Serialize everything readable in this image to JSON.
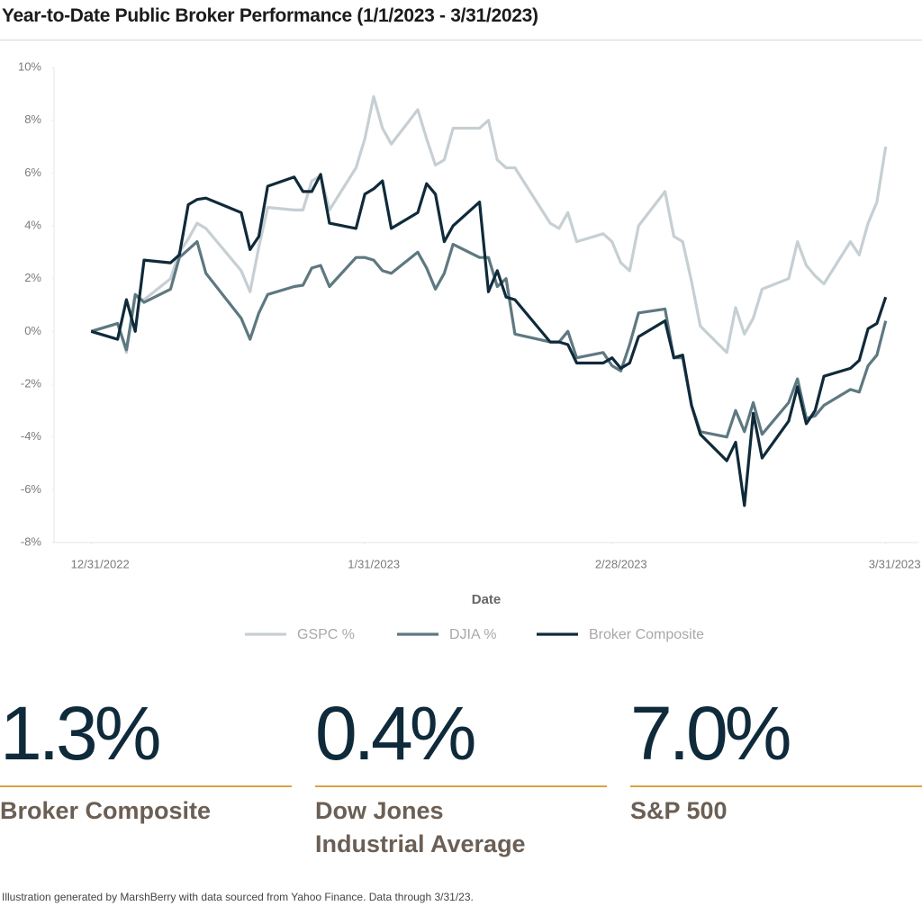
{
  "chart_data": {
    "type": "line",
    "title": "Year-to-Date Public Broker Performance (1/1/2023 - 3/31/2023)",
    "x_label": "Date",
    "x": [
      0,
      3,
      4,
      5,
      6,
      9,
      10,
      11,
      12,
      13,
      17,
      18,
      19,
      20,
      23,
      24,
      25,
      26,
      27,
      30,
      31,
      32,
      33,
      34,
      37,
      38,
      39,
      40,
      41,
      44,
      45,
      46,
      47,
      48,
      52,
      53,
      54,
      55,
      58,
      59,
      60,
      61,
      62,
      65,
      66,
      67,
      68,
      69,
      72,
      73,
      74,
      75,
      76,
      79,
      80,
      81,
      82,
      83,
      86,
      87,
      88,
      89,
      90
    ],
    "xlim": [
      -4.2,
      93.7
    ],
    "xticks": [
      {
        "value": 0,
        "label": "12/31/2022"
      },
      {
        "value": 31,
        "label": "1/31/2023"
      },
      {
        "value": 59,
        "label": "2/28/2023"
      },
      {
        "value": 90,
        "label": "3/31/2023"
      }
    ],
    "ylim": [
      -8,
      10
    ],
    "yticks": [
      {
        "value": 10,
        "label": "10%"
      },
      {
        "value": 8,
        "label": "8%"
      },
      {
        "value": 6,
        "label": "6%"
      },
      {
        "value": 4,
        "label": "4%"
      },
      {
        "value": 2,
        "label": "2%"
      },
      {
        "value": 0,
        "label": "0%"
      },
      {
        "value": -2,
        "label": "-2%"
      },
      {
        "value": -4,
        "label": "-4%"
      },
      {
        "value": -6,
        "label": "-6%"
      },
      {
        "value": -8,
        "label": "-8%"
      }
    ],
    "legend": "bottom",
    "series": [
      {
        "name": "GSPC %",
        "color": "#c6cfd3",
        "values": [
          0,
          0.3,
          -0.8,
          1.3,
          1.2,
          2.0,
          3.0,
          3.5,
          4.1,
          3.9,
          2.3,
          1.5,
          3.2,
          4.7,
          4.6,
          4.6,
          5.7,
          5.9,
          4.6,
          6.2,
          7.3,
          8.9,
          7.7,
          7.1,
          8.4,
          7.3,
          6.3,
          6.5,
          7.7,
          7.7,
          8.0,
          6.5,
          6.2,
          6.2,
          4.1,
          3.9,
          4.5,
          3.4,
          3.7,
          3.4,
          2.6,
          2.3,
          4.0,
          5.3,
          3.6,
          3.4,
          1.9,
          0.2,
          -0.8,
          0.9,
          -0.1,
          0.5,
          1.6,
          2.0,
          3.4,
          2.5,
          2.1,
          1.8,
          3.4,
          2.9,
          4.1,
          4.9,
          7.0
        ]
      },
      {
        "name": "DJIA %",
        "color": "#5e7880",
        "values": [
          0,
          0.3,
          -0.7,
          1.4,
          1.1,
          1.6,
          2.8,
          3.1,
          3.4,
          2.2,
          0.5,
          -0.3,
          0.7,
          1.4,
          1.7,
          1.75,
          2.4,
          2.5,
          1.7,
          2.8,
          2.8,
          2.7,
          2.3,
          2.2,
          3.0,
          2.4,
          1.6,
          2.2,
          3.3,
          2.8,
          2.8,
          1.7,
          2.0,
          -0.1,
          -0.4,
          -0.4,
          0,
          -1.0,
          -0.8,
          -1.3,
          -1.5,
          -0.5,
          0.7,
          0.85,
          -1.0,
          -1.0,
          -2.8,
          -3.8,
          -4.0,
          -3.0,
          -3.8,
          -2.7,
          -3.9,
          -2.7,
          -1.8,
          -3.3,
          -3.2,
          -2.8,
          -2.2,
          -2.3,
          -1.3,
          -0.9,
          0.4
        ]
      },
      {
        "name": "Broker Composite",
        "color": "#0f2a3a",
        "values": [
          0,
          -0.3,
          1.2,
          0,
          2.7,
          2.6,
          2.9,
          4.8,
          5.0,
          5.05,
          4.5,
          3.1,
          3.6,
          5.5,
          5.85,
          5.3,
          5.3,
          5.95,
          4.1,
          3.9,
          5.2,
          5.4,
          5.7,
          3.9,
          4.5,
          5.6,
          5.2,
          3.4,
          4.0,
          4.9,
          1.5,
          2.3,
          1.3,
          1.2,
          -0.4,
          -0.4,
          -0.5,
          -1.2,
          -1.2,
          -1.0,
          -1.4,
          -1.2,
          -0.2,
          0.4,
          -1.0,
          -0.9,
          -2.8,
          -3.9,
          -4.9,
          -4.2,
          -6.6,
          -3.1,
          -4.8,
          -3.4,
          -2.1,
          -3.5,
          -3.0,
          -1.7,
          -1.4,
          -1.1,
          0.1,
          0.3,
          1.3
        ]
      }
    ]
  },
  "stats": [
    {
      "value": "1.3%",
      "label": "Broker Composite"
    },
    {
      "value": "0.4%",
      "label": "Dow Jones\nIndustrial Average"
    },
    {
      "value": "7.0%",
      "label": "S&P 500"
    }
  ],
  "footnote": "Illustration generated by MarshBerry with data sourced from Yahoo Finance. Data through 3/31/23."
}
